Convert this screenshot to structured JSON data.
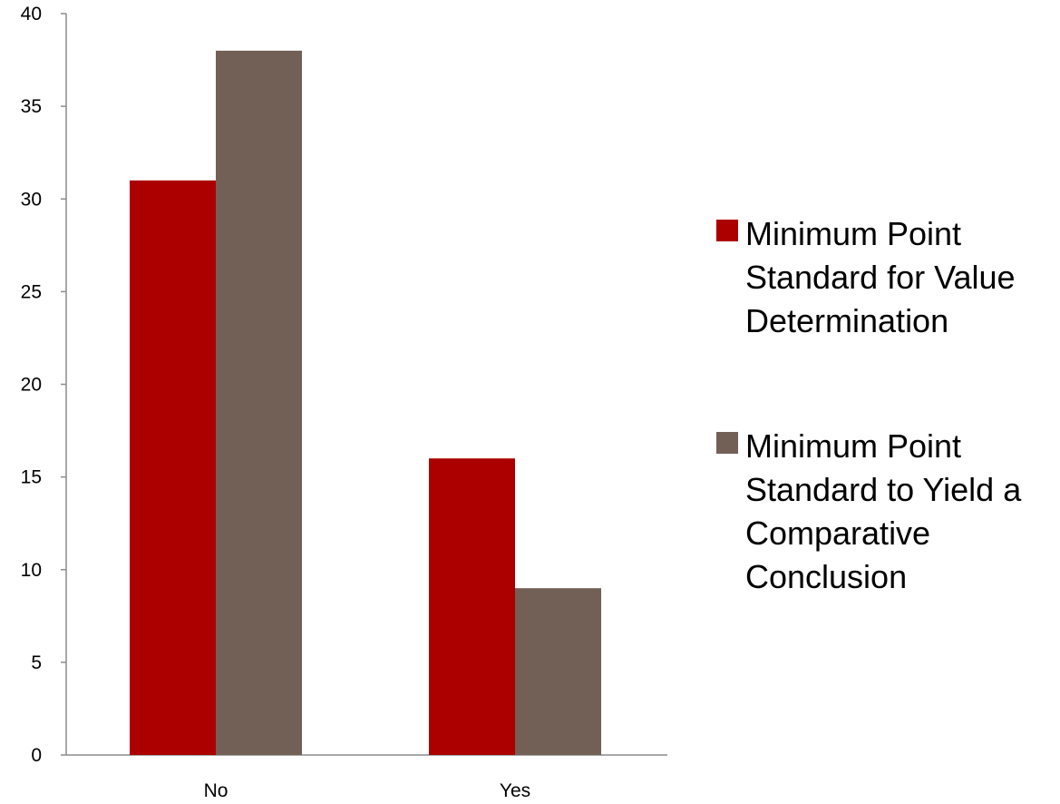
{
  "chart_data": {
    "type": "bar",
    "title": "",
    "xlabel": "",
    "ylabel": "",
    "categories": [
      "No",
      "Yes"
    ],
    "series": [
      {
        "name": "Minimum Point Standard for Value Determination",
        "legend_lines": [
          "Minimum Point",
          "Standard for Value",
          "Determination"
        ],
        "color": "#ac0000",
        "values": [
          31,
          16
        ]
      },
      {
        "name": "Minimum Point Standard to Yield a Comparative Conclusion",
        "legend_lines": [
          "Minimum Point",
          "Standard to Yield a",
          "Comparative",
          "Conclusion"
        ],
        "color": "#726056",
        "values": [
          38,
          9
        ]
      }
    ],
    "ylim": [
      0,
      40
    ],
    "yticks": [
      0,
      5,
      10,
      15,
      20,
      25,
      30,
      35,
      40
    ],
    "grid": false,
    "legend_position": "right"
  }
}
